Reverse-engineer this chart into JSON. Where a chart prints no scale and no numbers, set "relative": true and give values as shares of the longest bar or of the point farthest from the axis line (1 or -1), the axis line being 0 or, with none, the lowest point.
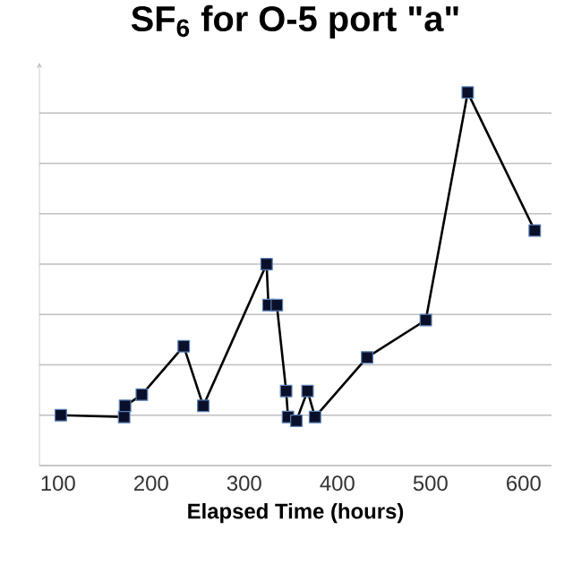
{
  "chart_data": {
    "type": "line",
    "title": "SF$_{6}$ for O-5 port \"a\"",
    "xlabel": "Elapsed Time (hours)",
    "relative": true,
    "x": [
      103,
      171,
      172,
      190,
      235,
      256,
      324,
      326,
      335,
      345,
      347,
      356,
      368,
      376,
      432,
      495,
      540,
      612
    ],
    "series": [
      {
        "color": "#000000",
        "values": [
          0.135,
          0.13,
          0.16,
          0.19,
          0.32,
          0.16,
          0.54,
          0.43,
          0.43,
          0.2,
          0.13,
          0.12,
          0.2,
          0.13,
          0.29,
          0.39,
          1.0,
          0.63
        ]
      }
    ],
    "xlim": [
      80,
      630
    ],
    "xticks": [
      100,
      200,
      300,
      400,
      500,
      600
    ],
    "grid": "y",
    "marker": "square",
    "line_style": "solid"
  }
}
